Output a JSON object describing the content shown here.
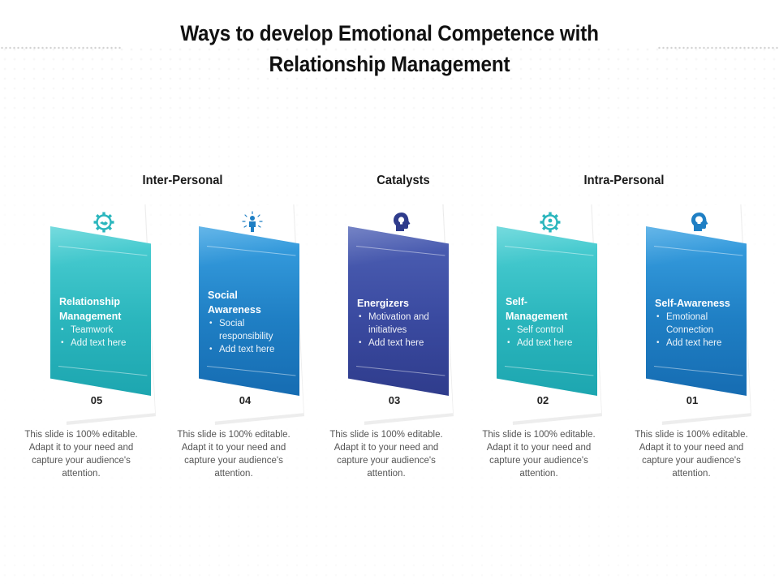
{
  "title": {
    "line1": "Ways to develop Emotional Competence with",
    "line2": "Relationship Management"
  },
  "groups": [
    {
      "label": "Inter-Personal"
    },
    {
      "label": "Catalysts"
    },
    {
      "label": "Intra-Personal"
    }
  ],
  "cards": [
    {
      "number": "05",
      "heading": [
        "Relationship",
        "Management"
      ],
      "bullets": [
        "Teamwork",
        "Add text here"
      ],
      "icon": "gear-handshake-icon",
      "color": "#2bb6bd",
      "description": "This slide is 100% editable. Adapt it to your need and capture your audience's attention."
    },
    {
      "number": "04",
      "heading": [
        "Social",
        "Awareness"
      ],
      "bullets": [
        "Social responsibility",
        "Add text here"
      ],
      "icon": "person-radiating-icon",
      "color": "#1f7fc4",
      "description": "This slide is 100% editable. Adapt it to your need and capture your audience's attention."
    },
    {
      "number": "03",
      "heading": [
        "Energizers"
      ],
      "bullets": [
        "Motivation and initiatives",
        "Add text here"
      ],
      "icon": "head-lightbulb-icon",
      "color": "#3a4aa0",
      "description": "This slide is 100% editable. Adapt it to your need and capture your audience's attention."
    },
    {
      "number": "02",
      "heading": [
        "Self-",
        "Management"
      ],
      "bullets": [
        "Self control",
        "Add text here"
      ],
      "icon": "gear-person-icon",
      "color": "#2bb6bd",
      "description": "This slide is 100% editable. Adapt it to your need and capture your audience's attention."
    },
    {
      "number": "01",
      "heading": [
        "Self-Awareness"
      ],
      "bullets": [
        "Emotional Connection",
        "Add text here"
      ],
      "icon": "head-profile-icon",
      "color": "#1f7fc4",
      "description": "This slide is 100% editable. Adapt it to your need and capture your audience's attention."
    }
  ]
}
